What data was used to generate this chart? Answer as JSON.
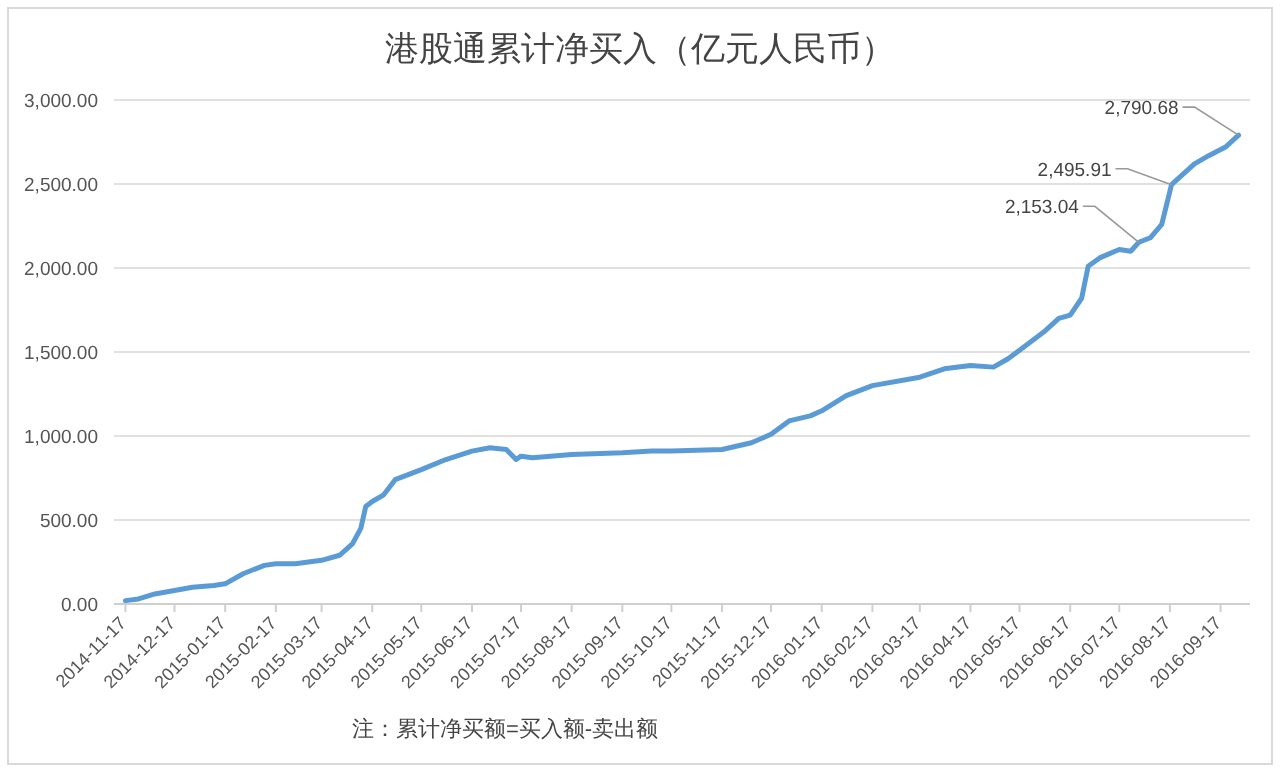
{
  "chart_data": {
    "type": "line",
    "title": "港股通累计净买入（亿元人民币）",
    "x": [
      "2014-11-17",
      "2014-11-25",
      "2014-12-05",
      "2014-12-17",
      "2014-12-28",
      "2015-01-10",
      "2015-01-17",
      "2015-01-28",
      "2015-02-10",
      "2015-02-17",
      "2015-03-01",
      "2015-03-17",
      "2015-03-28",
      "2015-04-05",
      "2015-04-10",
      "2015-04-13",
      "2015-04-17",
      "2015-04-24",
      "2015-05-01",
      "2015-05-17",
      "2015-06-01",
      "2015-06-17",
      "2015-06-28",
      "2015-07-08",
      "2015-07-14",
      "2015-07-17",
      "2015-07-24",
      "2015-08-17",
      "2015-09-17",
      "2015-10-05",
      "2015-10-17",
      "2015-11-17",
      "2015-12-05",
      "2015-12-17",
      "2015-12-28",
      "2016-01-10",
      "2016-01-17",
      "2016-02-01",
      "2016-02-17",
      "2016-03-17",
      "2016-04-01",
      "2016-04-17",
      "2016-05-01",
      "2016-05-10",
      "2016-05-17",
      "2016-06-01",
      "2016-06-10",
      "2016-06-17",
      "2016-06-24",
      "2016-06-28",
      "2016-07-05",
      "2016-07-17",
      "2016-07-24",
      "2016-07-29",
      "2016-08-05",
      "2016-08-12",
      "2016-08-18",
      "2016-09-01",
      "2016-09-10",
      "2016-09-20",
      "2016-09-28"
    ],
    "values": [
      20,
      30,
      60,
      80,
      100,
      110,
      120,
      180,
      230,
      240,
      240,
      260,
      290,
      360,
      450,
      580,
      610,
      650,
      740,
      800,
      860,
      910,
      930,
      920,
      860,
      880,
      870,
      890,
      900,
      910,
      910,
      920,
      960,
      1010,
      1090,
      1120,
      1150,
      1240,
      1300,
      1350,
      1400,
      1420,
      1410,
      1460,
      1510,
      1620,
      1700,
      1720,
      1820,
      2010,
      2060,
      2110,
      2100,
      2153.04,
      2180,
      2260,
      2495.91,
      2620,
      2670,
      2720,
      2790.68
    ],
    "color": "#5b9bd5",
    "line_style": "solid",
    "marker": "none",
    "ylim": [
      0,
      3000
    ],
    "yticks": [
      {
        "value": 0,
        "label": "0.00"
      },
      {
        "value": 500,
        "label": "500.00"
      },
      {
        "value": 1000,
        "label": "1,000.00"
      },
      {
        "value": 1500,
        "label": "1,500.00"
      },
      {
        "value": 2000,
        "label": "2,000.00"
      },
      {
        "value": 2500,
        "label": "2,500.00"
      },
      {
        "value": 3000,
        "label": "3,000.00"
      }
    ],
    "xlim": [
      "2014-11-10",
      "2016-10-05"
    ],
    "xticks": [
      "2014-11-17",
      "2014-12-17",
      "2015-01-17",
      "2015-02-17",
      "2015-03-17",
      "2015-04-17",
      "2015-05-17",
      "2015-06-17",
      "2015-07-17",
      "2015-08-17",
      "2015-09-17",
      "2015-10-17",
      "2015-11-17",
      "2015-12-17",
      "2016-01-17",
      "2016-02-17",
      "2016-03-17",
      "2016-04-17",
      "2016-05-17",
      "2016-06-17",
      "2016-07-17",
      "2016-08-17",
      "2016-09-17"
    ],
    "grid": "y",
    "annotations": [
      {
        "text": "2,153.04",
        "x": "2016-07-29",
        "y": 2153.04
      },
      {
        "text": "2,495.91",
        "x": "2016-08-18",
        "y": 2495.91
      },
      {
        "text": "2,790.68",
        "x": "2016-09-28",
        "y": 2790.68
      },
      "注：累计净买额=买入额-卖出额"
    ]
  }
}
